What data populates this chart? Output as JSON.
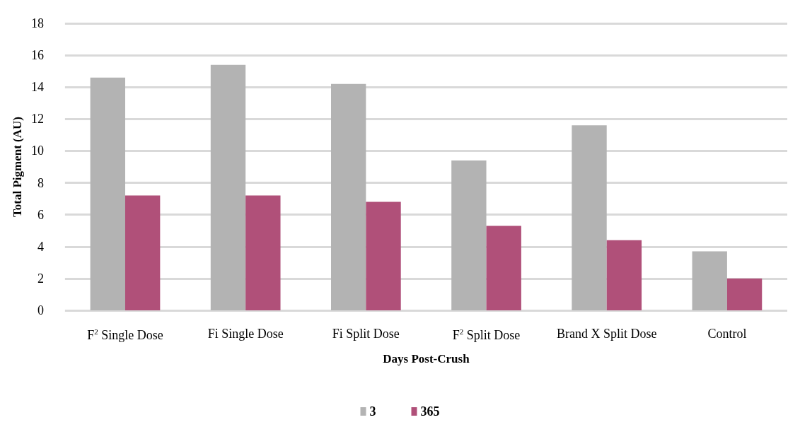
{
  "chart_data": {
    "type": "bar",
    "categories": [
      "F$^{2}$ Single Dose",
      "Fi Single Dose",
      "Fi Split Dose",
      "F$^{2}$ Split Dose",
      "Brand X Split Dose",
      "Control"
    ],
    "series": [
      {
        "name": "3",
        "color": "#b3b3b3",
        "values": [
          14.6,
          15.4,
          14.2,
          9.4,
          11.6,
          3.7
        ]
      },
      {
        "name": "365",
        "color": "#b05079",
        "values": [
          7.2,
          7.2,
          6.8,
          5.3,
          4.4,
          2.0
        ]
      }
    ],
    "xlabel": "Days Post-Crush",
    "ylabel": "Total Pigment (AU)",
    "ylim": [
      0,
      18
    ],
    "yticks": [
      0,
      2,
      4,
      6,
      8,
      10,
      12,
      14,
      16,
      18
    ],
    "grid": "y",
    "legend": "bottom"
  }
}
